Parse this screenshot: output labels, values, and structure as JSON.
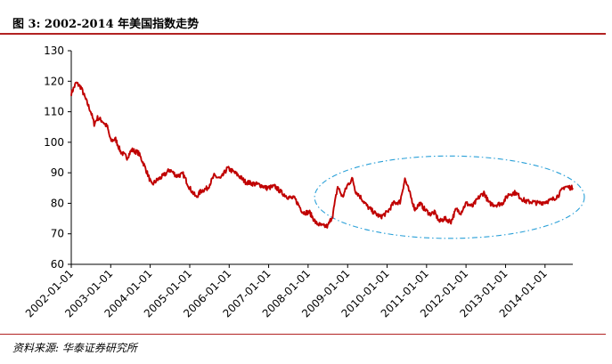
{
  "header": {
    "title": "图 3:  2002-2014 年美国指数走势"
  },
  "footer": {
    "source": "资料来源: 华泰证券研究所"
  },
  "colors": {
    "series": "#c00000",
    "highlight": "#2aa0d8",
    "rule": "#b22222",
    "axis": "#000000"
  },
  "chart_data": {
    "type": "line",
    "title": "2002-2014 年美国指数走势",
    "xlabel": "",
    "ylabel": "",
    "ylim": [
      60,
      130
    ],
    "y_ticks": [
      60,
      70,
      80,
      90,
      100,
      110,
      120,
      130
    ],
    "x_ticks": [
      "2002-01-01",
      "2003-01-01",
      "2004-01-01",
      "2005-01-01",
      "2006-01-01",
      "2007-01-01",
      "2008-01-01",
      "2009-01-01",
      "2010-01-01",
      "2011-01-01",
      "2012-01-01",
      "2013-01-01",
      "2014-01-01"
    ],
    "x_range": [
      "2002-01-01",
      "2014-09-15"
    ],
    "grid": false,
    "legend": "none",
    "annotation": "dash-dot ellipse highlighting 2008-2014 range",
    "highlight_region": {
      "x": [
        "2008-03-01",
        "2014-12-31"
      ],
      "y": [
        68.5,
        95.5
      ]
    },
    "series": [
      {
        "points": [
          [
            "2002-01-01",
            116
          ],
          [
            "2002-02-15",
            119.5
          ],
          [
            "2002-04-01",
            118
          ],
          [
            "2002-05-15",
            114
          ],
          [
            "2002-07-01",
            110
          ],
          [
            "2002-08-01",
            106
          ],
          [
            "2002-09-01",
            108
          ],
          [
            "2002-10-15",
            107
          ],
          [
            "2002-12-01",
            105
          ],
          [
            "2003-01-01",
            100.5
          ],
          [
            "2003-02-15",
            101
          ],
          [
            "2003-04-01",
            97
          ],
          [
            "2003-06-01",
            95
          ],
          [
            "2003-07-15",
            97.5
          ],
          [
            "2003-09-15",
            96.5
          ],
          [
            "2003-11-01",
            93
          ],
          [
            "2003-12-15",
            89
          ],
          [
            "2004-01-15",
            86
          ],
          [
            "2004-03-01",
            87.5
          ],
          [
            "2004-05-01",
            89
          ],
          [
            "2004-07-01",
            91
          ],
          [
            "2004-09-01",
            89
          ],
          [
            "2004-11-01",
            89.5
          ],
          [
            "2005-01-01",
            85
          ],
          [
            "2005-03-01",
            82
          ],
          [
            "2005-04-15",
            84
          ],
          [
            "2005-06-15",
            85
          ],
          [
            "2005-08-15",
            89
          ],
          [
            "2005-10-15",
            88
          ],
          [
            "2005-12-15",
            91.5
          ],
          [
            "2006-02-01",
            90.5
          ],
          [
            "2006-04-01",
            89
          ],
          [
            "2006-06-01",
            87
          ],
          [
            "2006-08-01",
            86.5
          ],
          [
            "2006-10-15",
            86
          ],
          [
            "2006-12-15",
            85
          ],
          [
            "2007-03-01",
            85.5
          ],
          [
            "2007-05-01",
            83.5
          ],
          [
            "2007-07-01",
            82
          ],
          [
            "2007-09-01",
            81.5
          ],
          [
            "2007-11-15",
            77
          ],
          [
            "2008-01-15",
            77
          ],
          [
            "2008-03-15",
            73.5
          ],
          [
            "2008-05-15",
            72.5
          ],
          [
            "2008-07-01",
            72.5
          ],
          [
            "2008-08-15",
            76
          ],
          [
            "2008-10-01",
            85.5
          ],
          [
            "2008-11-15",
            82
          ],
          [
            "2008-12-31",
            86
          ],
          [
            "2009-02-15",
            88
          ],
          [
            "2009-03-15",
            84
          ],
          [
            "2009-05-01",
            82
          ],
          [
            "2009-07-01",
            79
          ],
          [
            "2009-09-01",
            77
          ],
          [
            "2009-11-01",
            75.5
          ],
          [
            "2010-01-01",
            77
          ],
          [
            "2010-03-01",
            80
          ],
          [
            "2010-05-01",
            80.5
          ],
          [
            "2010-06-15",
            88
          ],
          [
            "2010-08-01",
            83
          ],
          [
            "2010-09-15",
            78
          ],
          [
            "2010-11-01",
            80
          ],
          [
            "2010-12-15",
            78
          ],
          [
            "2011-02-01",
            76.5
          ],
          [
            "2011-03-15",
            77
          ],
          [
            "2011-05-01",
            74
          ],
          [
            "2011-06-15",
            75
          ],
          [
            "2011-08-15",
            74
          ],
          [
            "2011-10-01",
            78
          ],
          [
            "2011-11-15",
            77
          ],
          [
            "2012-01-01",
            80
          ],
          [
            "2012-03-01",
            79
          ],
          [
            "2012-05-01",
            82
          ],
          [
            "2012-06-15",
            83.5
          ],
          [
            "2012-08-01",
            80
          ],
          [
            "2012-10-01",
            79.5
          ],
          [
            "2012-12-01",
            80
          ],
          [
            "2013-02-01",
            83
          ],
          [
            "2013-04-01",
            83.5
          ],
          [
            "2013-06-01",
            81.5
          ],
          [
            "2013-07-15",
            80.5
          ],
          [
            "2013-09-01",
            80.5
          ],
          [
            "2013-11-01",
            80
          ],
          [
            "2014-01-01",
            80.5
          ],
          [
            "2014-03-01",
            81
          ],
          [
            "2014-05-01",
            82.5
          ],
          [
            "2014-07-01",
            85.5
          ],
          [
            "2014-09-15",
            85
          ]
        ]
      }
    ]
  }
}
